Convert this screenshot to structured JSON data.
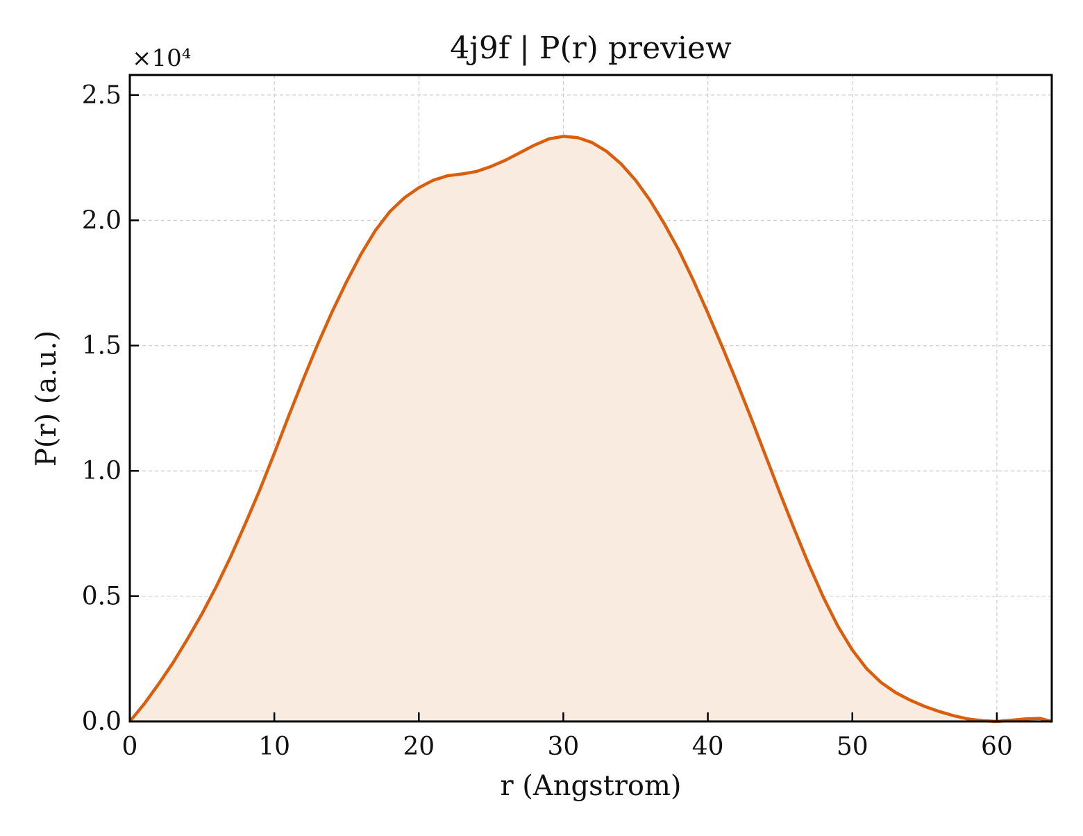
{
  "chart_data": {
    "type": "area",
    "title": "4j9f | P(r) preview",
    "xlabel": "r (Angstrom)",
    "ylabel": "P(r) (a.u.)",
    "y_multiplier_label": "×10⁴",
    "xlim": [
      0,
      63.8
    ],
    "ylim": [
      0,
      25800
    ],
    "xticks": [
      0,
      10,
      20,
      30,
      40,
      50,
      60
    ],
    "yticks": [
      0,
      5000,
      10000,
      15000,
      20000,
      25000
    ],
    "ytick_labels": [
      "0.0",
      "0.5",
      "1.0",
      "1.5",
      "2.0",
      "2.5"
    ],
    "grid": true,
    "line_color": "#D95F0E",
    "fill_color": "#F9EBE0",
    "series": [
      {
        "x": [
          0,
          1,
          2,
          3,
          4,
          5,
          6,
          7,
          8,
          9,
          10,
          11,
          12,
          13,
          14,
          15,
          16,
          17,
          18,
          19,
          20,
          21,
          22,
          23,
          24,
          25,
          26,
          27,
          28,
          29,
          30,
          31,
          32,
          33,
          34,
          35,
          36,
          37,
          38,
          39,
          40,
          41,
          42,
          43,
          44,
          45,
          46,
          47,
          48,
          49,
          50,
          51,
          52,
          53,
          54,
          55,
          56,
          57,
          58,
          59,
          60,
          61,
          62,
          63,
          63.8
        ],
        "values": [
          0,
          700,
          1500,
          2350,
          3300,
          4300,
          5400,
          6600,
          7900,
          9250,
          10700,
          12200,
          13650,
          15050,
          16350,
          17550,
          18650,
          19600,
          20350,
          20900,
          21300,
          21600,
          21780,
          21850,
          21950,
          22150,
          22400,
          22700,
          23000,
          23250,
          23350,
          23300,
          23100,
          22750,
          22250,
          21600,
          20800,
          19850,
          18800,
          17600,
          16300,
          14950,
          13550,
          12100,
          10600,
          9100,
          7650,
          6250,
          4950,
          3800,
          2850,
          2100,
          1550,
          1150,
          850,
          600,
          400,
          230,
          100,
          30,
          0,
          50,
          100,
          120,
          0
        ]
      }
    ]
  }
}
